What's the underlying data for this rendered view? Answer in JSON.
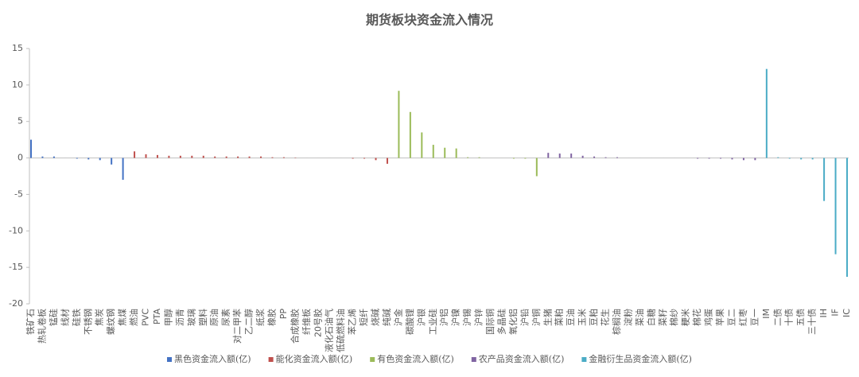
{
  "chart_data": {
    "type": "bar",
    "title": "期货板块资金流入情况",
    "ylim": [
      -20,
      15
    ],
    "yticks": [
      15,
      10,
      5,
      0,
      -5,
      -10,
      -15,
      -20
    ],
    "grid": false,
    "legend": "bottom",
    "series": [
      {
        "name": "黑色资金流入额(亿)",
        "color": "#4472c4",
        "categories": [
          "铁矿石",
          "热轧卷板",
          "锰硅",
          "线材",
          "硅铁",
          "不锈钢",
          "焦炭",
          "螺纹钢",
          "焦煤"
        ],
        "values": [
          2.5,
          0.2,
          0.2,
          0,
          -0.1,
          -0.2,
          -0.3,
          -0.9,
          -3.0
        ]
      },
      {
        "name": "能化资金流入额(亿)",
        "color": "#c0504d",
        "categories": [
          "燃油",
          "PVC",
          "PTA",
          "甲醇",
          "沥青",
          "玻璃",
          "塑料",
          "原油",
          "尿素",
          "对二甲苯",
          "乙二醇",
          "纸浆",
          "橡胶",
          "PP",
          "合成橡胶",
          "纤维板",
          "20号胶",
          "液化石油气",
          "低硫燃料油",
          "苯乙烯",
          "短纤",
          "烧碱",
          "纯碱"
        ],
        "values": [
          0.9,
          0.5,
          0.4,
          0.3,
          0.3,
          0.3,
          0.3,
          0.2,
          0.2,
          0.2,
          0.2,
          0.2,
          0.1,
          0.1,
          0.05,
          0,
          0,
          0,
          0,
          -0.1,
          -0.1,
          -0.3,
          -0.8
        ]
      },
      {
        "name": "有色资金流入额(亿)",
        "color": "#9bbb59",
        "categories": [
          "沪金",
          "碳酸锂",
          "沪银",
          "工业硅",
          "沪铝",
          "沪镍",
          "沪锡",
          "沪锌",
          "国际铜",
          "多晶硅",
          "氧化铝",
          "沪铅",
          "沪铜"
        ],
        "values": [
          9.2,
          6.3,
          3.5,
          1.8,
          1.4,
          1.3,
          0.1,
          0.1,
          0,
          0,
          -0.1,
          -0.1,
          -2.5
        ]
      },
      {
        "name": "农产品资金流入额(亿)",
        "color": "#8064a2",
        "categories": [
          "生猪",
          "菜粕",
          "豆油",
          "玉米",
          "豆粕",
          "花生",
          "棕榈油",
          "淀粉",
          "菜油",
          "白糖",
          "菜籽",
          "棉纱",
          "粳米",
          "棉花",
          "鸡蛋",
          "苹果",
          "豆二",
          "红枣",
          "豆一"
        ],
        "values": [
          0.7,
          0.6,
          0.6,
          0.3,
          0.2,
          0.1,
          0.1,
          0,
          0,
          0,
          0,
          0,
          0,
          -0.1,
          -0.1,
          -0.1,
          -0.2,
          -0.3,
          -0.3
        ]
      },
      {
        "name": "金融衍生品资金流入额(亿)",
        "color": "#4bacc6",
        "categories": [
          "IM",
          "二债",
          "十债",
          "五债",
          "三十债",
          "IH",
          "IF",
          "IC"
        ],
        "values": [
          12.2,
          0.1,
          -0.1,
          -0.2,
          -0.2,
          -5.9,
          -13.2,
          -16.3
        ]
      }
    ]
  }
}
